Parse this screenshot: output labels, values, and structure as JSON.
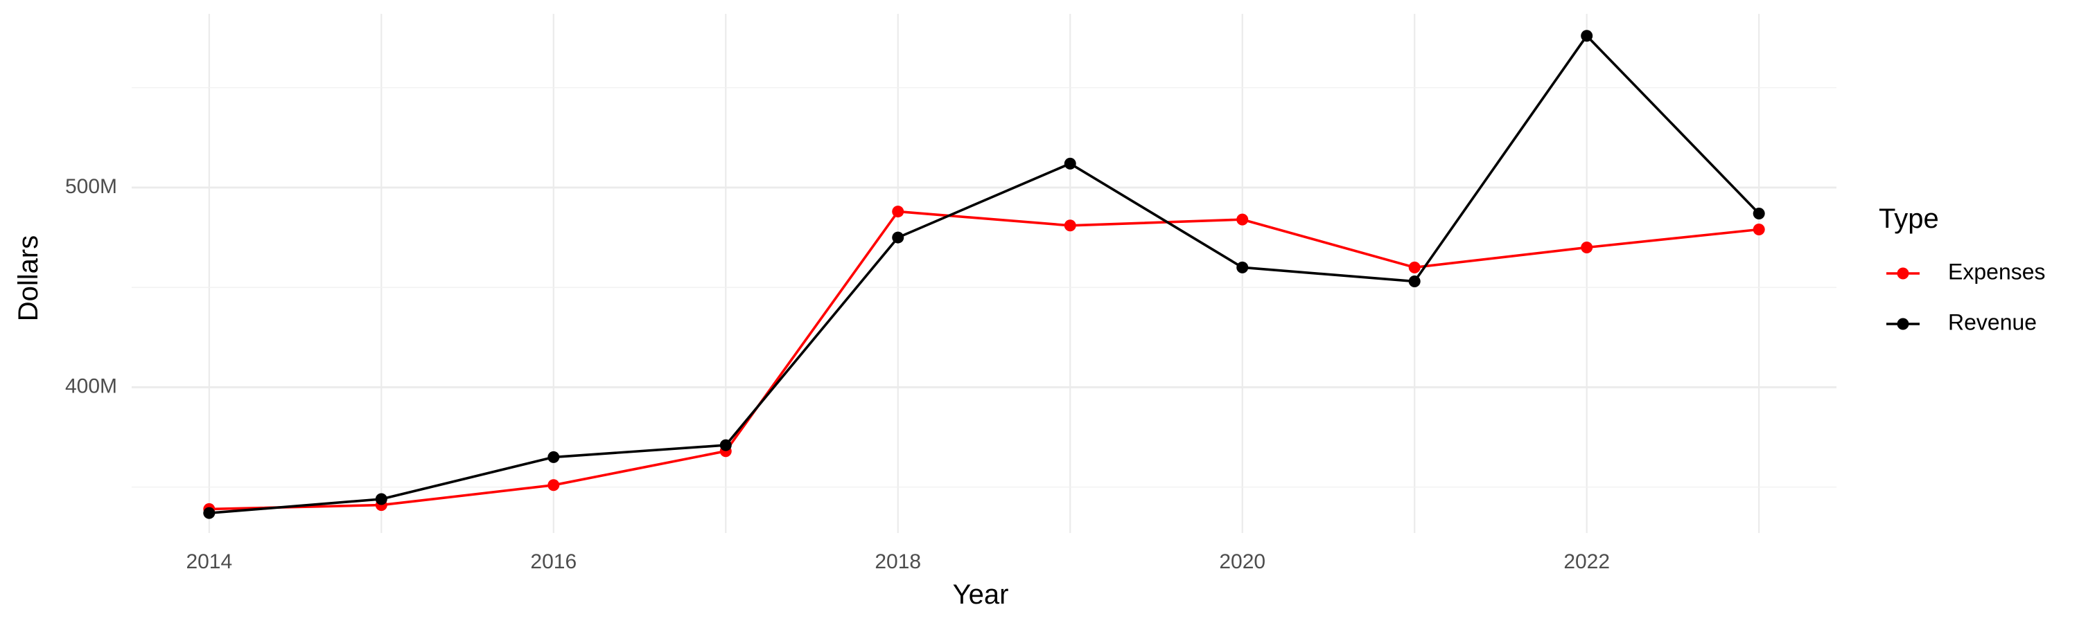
{
  "chart_data": {
    "type": "line",
    "title": "",
    "xlabel": "Year",
    "ylabel": "Dollars",
    "x": [
      2014,
      2015,
      2016,
      2017,
      2018,
      2019,
      2020,
      2021,
      2022,
      2023
    ],
    "xticks": [
      2014,
      2016,
      2018,
      2020,
      2022
    ],
    "xtick_labels": [
      "2014",
      "2016",
      "2018",
      "2020",
      "2022"
    ],
    "xlim": [
      2013.55,
      2023.45
    ],
    "yticks": [
      400000000,
      500000000
    ],
    "ytick_labels": [
      "400M",
      "500M"
    ],
    "yminor_ticks": [
      350000000,
      450000000,
      550000000
    ],
    "ylim": [
      327000000,
      587000000
    ],
    "grid": true,
    "legend": {
      "title": "Type",
      "placement": "right"
    },
    "series": [
      {
        "name": "Expenses",
        "color": "#ff0000",
        "values": [
          339000000,
          341000000,
          351000000,
          368000000,
          488000000,
          481000000,
          484000000,
          460000000,
          470000000,
          479000000
        ]
      },
      {
        "name": "Revenue",
        "color": "#000000",
        "values": [
          337000000,
          344000000,
          365000000,
          371000000,
          475000000,
          512000000,
          460000000,
          453000000,
          576000000,
          487000000
        ]
      }
    ]
  }
}
